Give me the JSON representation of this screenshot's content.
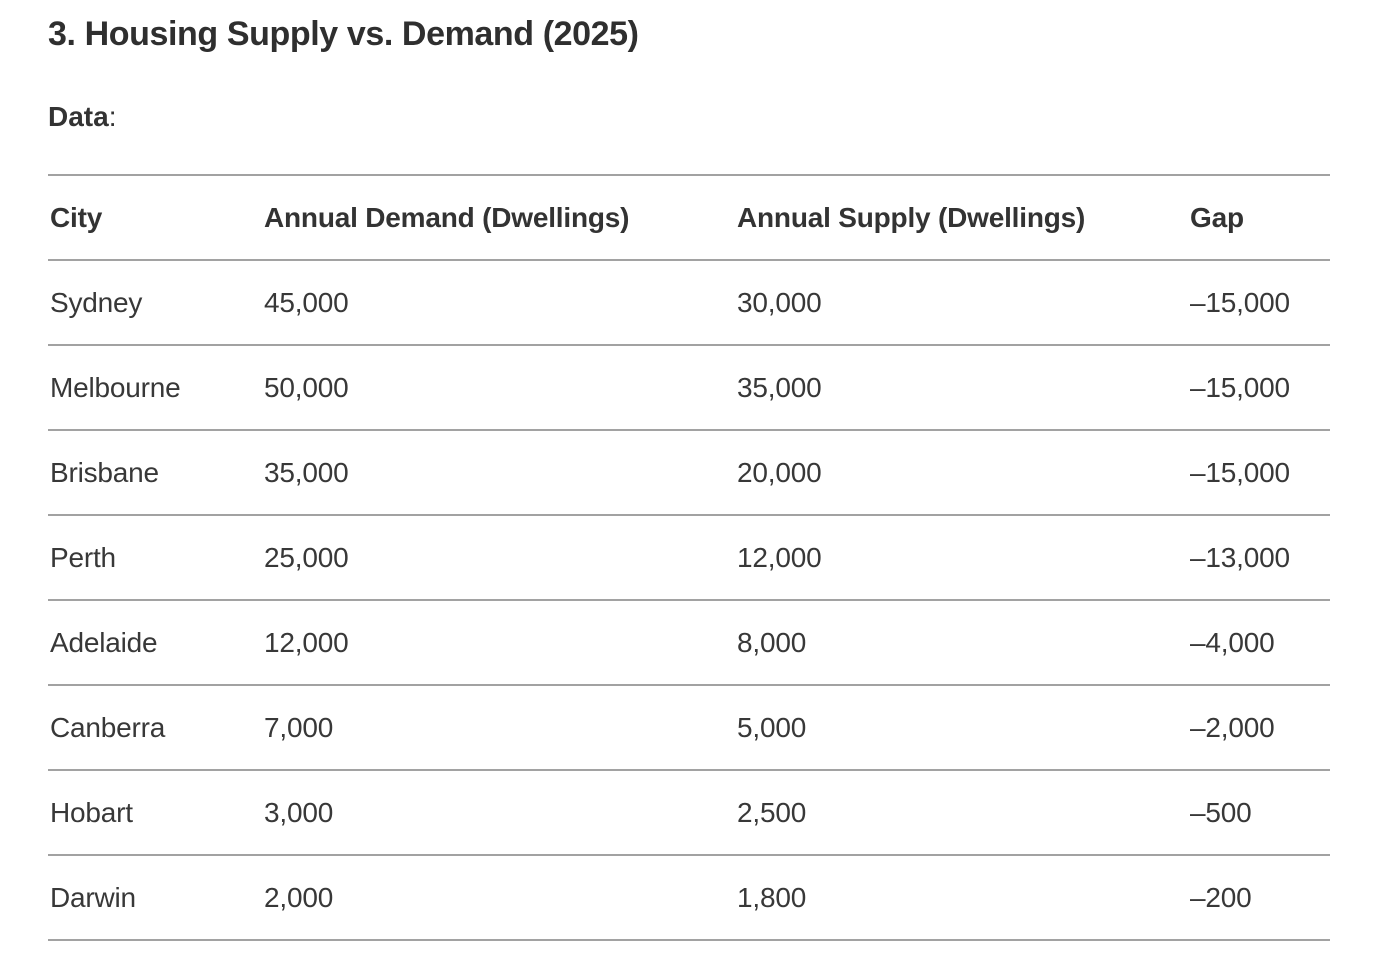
{
  "page": {
    "heading": "3. Housing Supply vs. Demand (2025)",
    "data_label": "Data",
    "data_label_colon": ":"
  },
  "table": {
    "columns": [
      "City",
      "Annual Demand (Dwellings)",
      "Annual Supply (Dwellings)",
      "Gap"
    ],
    "rows": [
      [
        "Sydney",
        "45,000",
        "30,000",
        "–15,000"
      ],
      [
        "Melbourne",
        "50,000",
        "35,000",
        "–15,000"
      ],
      [
        "Brisbane",
        "35,000",
        "20,000",
        "–15,000"
      ],
      [
        "Perth",
        "25,000",
        "12,000",
        "–13,000"
      ],
      [
        "Adelaide",
        "12,000",
        "8,000",
        "–4,000"
      ],
      [
        "Canberra",
        "7,000",
        "5,000",
        "–2,000"
      ],
      [
        "Hobart",
        "3,000",
        "2,500",
        "–500"
      ],
      [
        "Darwin",
        "2,000",
        "1,800",
        "–200"
      ]
    ]
  },
  "colors": {
    "background": "#ffffff",
    "text": "#333333",
    "heading_text": "#2f2f2f",
    "table_border": "#a2a2a2"
  }
}
